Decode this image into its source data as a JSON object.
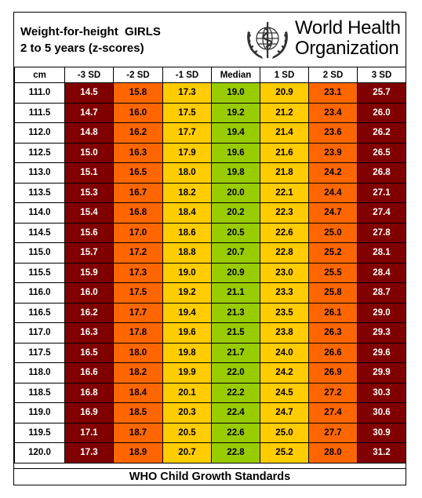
{
  "header": {
    "title_line1": "Weight-for-height  GIRLS",
    "title_line2": "2 to 5 years (z-scores)",
    "org_line1": "World Health",
    "org_line2": "Organization",
    "logo_icon": "who-emblem-icon"
  },
  "table": {
    "columns": [
      "cm",
      "-3 SD",
      "-2 SD",
      "-1 SD",
      "Median",
      "1 SD",
      "2 SD",
      "3 SD"
    ],
    "colors": {
      "sd3": "#800000",
      "sd2": "#ff6600",
      "sd1": "#ffcc00",
      "median": "#99cc00"
    },
    "rows": [
      [
        "111.0",
        "14.5",
        "15.8",
        "17.3",
        "19.0",
        "20.9",
        "23.1",
        "25.7"
      ],
      [
        "111.5",
        "14.7",
        "16.0",
        "17.5",
        "19.2",
        "21.2",
        "23.4",
        "26.0"
      ],
      [
        "112.0",
        "14.8",
        "16.2",
        "17.7",
        "19.4",
        "21.4",
        "23.6",
        "26.2"
      ],
      [
        "112.5",
        "15.0",
        "16.3",
        "17.9",
        "19.6",
        "21.6",
        "23.9",
        "26.5"
      ],
      [
        "113.0",
        "15.1",
        "16.5",
        "18.0",
        "19.8",
        "21.8",
        "24.2",
        "26.8"
      ],
      [
        "113.5",
        "15.3",
        "16.7",
        "18.2",
        "20.0",
        "22.1",
        "24.4",
        "27.1"
      ],
      [
        "114.0",
        "15.4",
        "16.8",
        "18.4",
        "20.2",
        "22.3",
        "24.7",
        "27.4"
      ],
      [
        "114.5",
        "15.6",
        "17.0",
        "18.6",
        "20.5",
        "22.6",
        "25.0",
        "27.8"
      ],
      [
        "115.0",
        "15.7",
        "17.2",
        "18.8",
        "20.7",
        "22.8",
        "25.2",
        "28.1"
      ],
      [
        "115.5",
        "15.9",
        "17.3",
        "19.0",
        "20.9",
        "23.0",
        "25.5",
        "28.4"
      ],
      [
        "116.0",
        "16.0",
        "17.5",
        "19.2",
        "21.1",
        "23.3",
        "25.8",
        "28.7"
      ],
      [
        "116.5",
        "16.2",
        "17.7",
        "19.4",
        "21.3",
        "23.5",
        "26.1",
        "29.0"
      ],
      [
        "117.0",
        "16.3",
        "17.8",
        "19.6",
        "21.5",
        "23.8",
        "26.3",
        "29.3"
      ],
      [
        "117.5",
        "16.5",
        "18.0",
        "19.8",
        "21.7",
        "24.0",
        "26.6",
        "29.6"
      ],
      [
        "118.0",
        "16.6",
        "18.2",
        "19.9",
        "22.0",
        "24.2",
        "26.9",
        "29.9"
      ],
      [
        "118.5",
        "16.8",
        "18.4",
        "20.1",
        "22.2",
        "24.5",
        "27.2",
        "30.3"
      ],
      [
        "119.0",
        "16.9",
        "18.5",
        "20.3",
        "22.4",
        "24.7",
        "27.4",
        "30.6"
      ],
      [
        "119.5",
        "17.1",
        "18.7",
        "20.5",
        "22.6",
        "25.0",
        "27.7",
        "30.9"
      ],
      [
        "120.0",
        "17.3",
        "18.9",
        "20.7",
        "22.8",
        "25.2",
        "28.0",
        "31.2"
      ]
    ]
  },
  "footer": {
    "text": "WHO Child Growth Standards"
  }
}
